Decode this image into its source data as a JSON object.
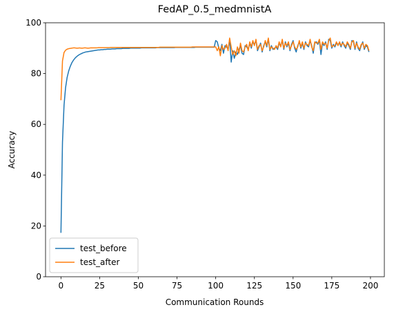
{
  "chart_data": {
    "type": "line",
    "title": "FedAP_0.5_medmnistA",
    "xlabel": "Communication Rounds",
    "ylabel": "Accuracy",
    "xlim": [
      -9.95,
      208.95
    ],
    "ylim": [
      0,
      100
    ],
    "xticks": [
      0,
      25,
      50,
      75,
      100,
      125,
      150,
      175,
      200
    ],
    "yticks": [
      0,
      20,
      40,
      60,
      80,
      100
    ],
    "grid": false,
    "legend": "lower left",
    "series": [
      {
        "name": "test_before",
        "color": "#1f77b4",
        "values": [
          17.3,
          53.0,
          67.5,
          74.5,
          78.5,
          81.0,
          82.8,
          84.2,
          85.2,
          86.0,
          86.6,
          87.1,
          87.5,
          87.8,
          88.1,
          88.3,
          88.5,
          88.6,
          88.7,
          88.8,
          88.9,
          89.0,
          89.1,
          89.2,
          89.3,
          89.3,
          89.4,
          89.4,
          89.5,
          89.5,
          89.6,
          89.6,
          89.6,
          89.7,
          89.7,
          89.7,
          89.8,
          89.8,
          89.8,
          89.8,
          89.9,
          89.9,
          89.9,
          89.9,
          89.9,
          90.0,
          90.0,
          90.0,
          90.0,
          90.0,
          90.0,
          90.0,
          90.1,
          90.1,
          90.1,
          90.1,
          90.1,
          90.1,
          90.1,
          90.1,
          90.1,
          90.1,
          90.2,
          90.2,
          90.2,
          90.2,
          90.2,
          90.2,
          90.2,
          90.2,
          90.2,
          90.2,
          90.2,
          90.2,
          90.3,
          90.3,
          90.3,
          90.3,
          90.3,
          90.3,
          90.3,
          90.3,
          90.3,
          90.3,
          90.3,
          90.3,
          90.3,
          90.4,
          90.4,
          90.4,
          90.4,
          90.4,
          90.4,
          90.4,
          90.4,
          90.4,
          90.4,
          90.4,
          90.4,
          90.4,
          93.0,
          92.5,
          90.0,
          89.0,
          91.5,
          88.0,
          91.0,
          90.5,
          89.5,
          93.5,
          84.5,
          89.0,
          86.0,
          88.5,
          87.5,
          89.5,
          91.0,
          88.0,
          87.5,
          91.0,
          90.5,
          89.5,
          92.0,
          90.0,
          92.5,
          91.5,
          93.0,
          89.0,
          90.5,
          92.0,
          88.5,
          91.0,
          92.5,
          90.5,
          93.5,
          89.0,
          91.0,
          89.5,
          90.0,
          90.5,
          89.5,
          92.0,
          91.0,
          93.0,
          89.5,
          92.5,
          90.5,
          92.0,
          89.0,
          91.5,
          93.0,
          90.0,
          88.5,
          91.0,
          92.5,
          90.0,
          92.0,
          89.5,
          92.5,
          91.0,
          90.5,
          93.0,
          91.0,
          88.0,
          92.0,
          92.5,
          91.5,
          93.0,
          87.5,
          92.0,
          91.0,
          92.5,
          89.5,
          93.5,
          93.0,
          90.0,
          91.5,
          90.5,
          92.0,
          91.5,
          92.0,
          90.5,
          92.5,
          91.0,
          90.0,
          92.0,
          91.0,
          89.5,
          93.0,
          92.5,
          89.5,
          92.5,
          90.0,
          89.0,
          91.0,
          92.5,
          89.5,
          91.0,
          90.5,
          88.5
        ]
      },
      {
        "name": "test_after",
        "color": "#ff7f0e",
        "values": [
          69.5,
          85.0,
          88.3,
          89.2,
          89.6,
          89.8,
          89.9,
          90.0,
          90.1,
          90.1,
          90.0,
          90.0,
          90.1,
          90.0,
          90.0,
          90.1,
          90.1,
          90.0,
          90.0,
          90.1,
          90.1,
          90.1,
          90.1,
          90.1,
          90.2,
          90.2,
          90.2,
          90.2,
          90.2,
          90.2,
          90.2,
          90.2,
          90.3,
          90.3,
          90.3,
          90.3,
          90.3,
          90.3,
          90.3,
          90.3,
          90.3,
          90.3,
          90.3,
          90.3,
          90.3,
          90.3,
          90.3,
          90.3,
          90.3,
          90.3,
          90.3,
          90.3,
          90.3,
          90.3,
          90.3,
          90.3,
          90.3,
          90.3,
          90.3,
          90.3,
          90.3,
          90.3,
          90.3,
          90.3,
          90.4,
          90.4,
          90.4,
          90.4,
          90.4,
          90.4,
          90.4,
          90.4,
          90.4,
          90.4,
          90.4,
          90.4,
          90.4,
          90.4,
          90.4,
          90.4,
          90.4,
          90.4,
          90.4,
          90.4,
          90.4,
          90.5,
          90.5,
          90.5,
          90.5,
          90.5,
          90.5,
          90.5,
          90.5,
          90.5,
          90.5,
          90.5,
          90.5,
          90.5,
          90.5,
          90.5,
          90.5,
          89.0,
          90.5,
          87.0,
          91.0,
          89.5,
          90.0,
          91.5,
          89.0,
          94.0,
          90.5,
          87.5,
          89.0,
          87.0,
          90.5,
          88.0,
          92.0,
          89.0,
          88.5,
          90.5,
          91.5,
          89.0,
          92.5,
          90.5,
          93.0,
          91.0,
          93.5,
          89.5,
          91.0,
          91.5,
          89.0,
          90.5,
          93.0,
          91.0,
          94.0,
          89.5,
          90.5,
          90.0,
          89.5,
          91.0,
          90.0,
          92.5,
          90.5,
          93.5,
          90.0,
          92.0,
          91.0,
          92.5,
          89.5,
          91.0,
          92.5,
          90.5,
          89.5,
          90.5,
          93.0,
          90.5,
          92.5,
          90.0,
          92.0,
          91.5,
          91.0,
          93.5,
          90.5,
          89.0,
          92.5,
          92.0,
          92.0,
          93.5,
          89.5,
          92.5,
          91.5,
          92.0,
          90.0,
          93.0,
          94.0,
          90.5,
          91.0,
          91.0,
          92.5,
          91.0,
          92.5,
          91.0,
          92.0,
          91.5,
          90.5,
          92.5,
          91.5,
          90.0,
          92.5,
          93.0,
          90.0,
          92.0,
          90.5,
          89.5,
          91.5,
          92.0,
          90.0,
          91.5,
          91.0,
          89.0
        ]
      }
    ]
  }
}
